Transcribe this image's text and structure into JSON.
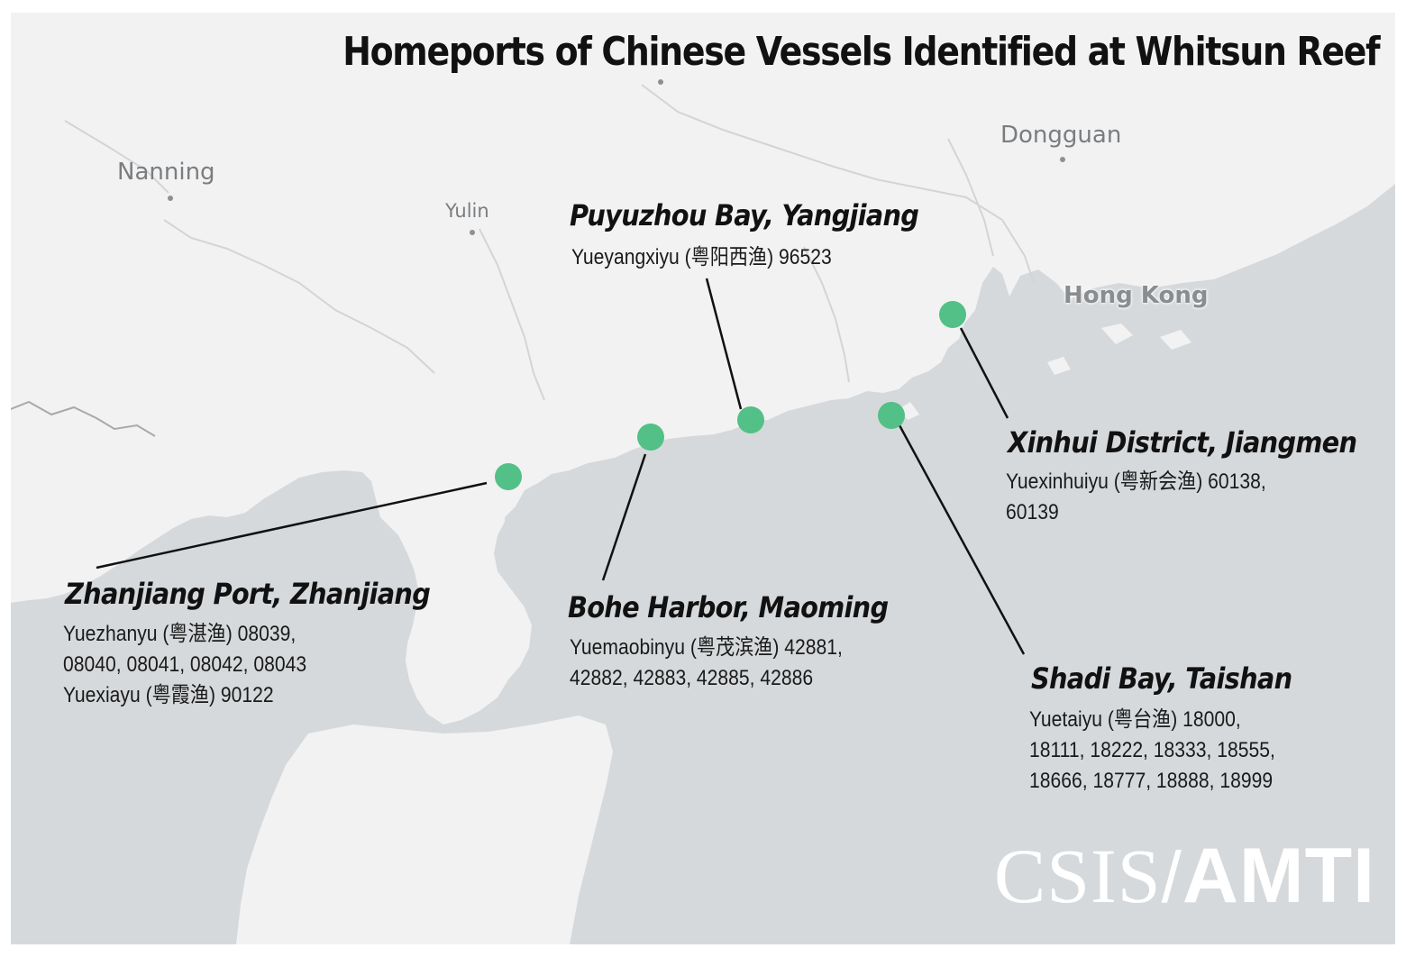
{
  "title": "Homeports of Chinese Vessels Identified at Whitsun Reef",
  "colors": {
    "water": "#d6d9db",
    "land": "#f2f2f2",
    "marker": "#52c087",
    "border": "#a9a9a9"
  },
  "cities": {
    "nanning": "Nanning",
    "yulin": "Yulin",
    "dongguan": "Dongguan",
    "hong_kong": "Hong Kong"
  },
  "ports": [
    {
      "name": "Puyuzhou Bay, Yangjiang",
      "vessels": "Yueyangxiyu (粤阳西渔) 96523"
    },
    {
      "name": "Xinhui District, Jiangmen",
      "vessels": "Yuexinhuiyu (粤新会渔) 60138,\n60139"
    },
    {
      "name": "Zhanjiang Port, Zhanjiang",
      "vessels": "Yuezhanyu (粤湛渔) 08039,\n08040, 08041, 08042, 08043\nYuexiayu (粤霞渔) 90122"
    },
    {
      "name": "Bohe Harbor, Maoming",
      "vessels": "Yuemaobinyu (粤茂滨渔) 42881,\n42882, 42883, 42885, 42886"
    },
    {
      "name": "Shadi Bay, Taishan",
      "vessels": "Yuetaiyu (粤台渔) 18000,\n18111, 18222, 18333, 18555,\n18666, 18777, 18888, 18999"
    }
  ],
  "logo": {
    "left": "CSIS",
    "separator": "/",
    "right": "AMTI"
  }
}
